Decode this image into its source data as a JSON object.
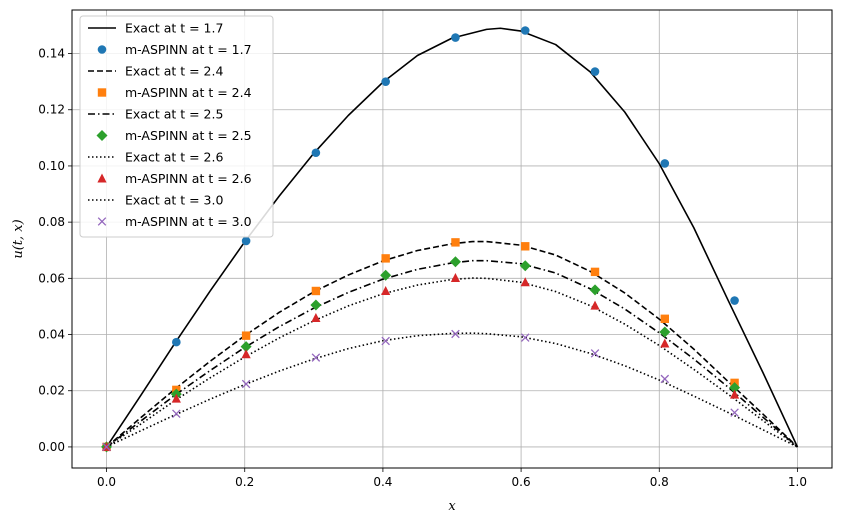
{
  "chart_data": {
    "type": "line",
    "xlabel": "x",
    "ylabel": "u(t, x)",
    "xlim": [
      -0.05,
      1.05
    ],
    "ylim": [
      -0.0075,
      0.1555
    ],
    "xticks": [
      0.0,
      0.2,
      0.4,
      0.6,
      0.8,
      1.0
    ],
    "xtick_labels": [
      "0.0",
      "0.2",
      "0.4",
      "0.6",
      "0.8",
      "1.0"
    ],
    "yticks": [
      0.0,
      0.02,
      0.04,
      0.06,
      0.08,
      0.1,
      0.12,
      0.14
    ],
    "ytick_labels": [
      "0.00",
      "0.02",
      "0.04",
      "0.06",
      "0.08",
      "0.10",
      "0.12",
      "0.14"
    ],
    "grid": true,
    "legend_position": "top-left",
    "series": [
      {
        "name": "Exact at t = 1.7",
        "kind": "line",
        "linestyle": "solid",
        "color": "#000000",
        "x": [
          0.0,
          0.05,
          0.1,
          0.15,
          0.2,
          0.25,
          0.3,
          0.35,
          0.4,
          0.45,
          0.5,
          0.55,
          0.57,
          0.6,
          0.65,
          0.7,
          0.75,
          0.8,
          0.85,
          0.9,
          0.95,
          1.0
        ],
        "y": [
          0.0,
          0.0185,
          0.0373,
          0.0555,
          0.073,
          0.0893,
          0.1045,
          0.118,
          0.1298,
          0.1393,
          0.1455,
          0.1486,
          0.149,
          0.148,
          0.1432,
          0.1335,
          0.1192,
          0.1008,
          0.078,
          0.052,
          0.0265,
          0.0
        ]
      },
      {
        "name": "m-ASPINN at t = 1.7",
        "kind": "marker",
        "marker": "circle",
        "color": "#1f77b4",
        "x": [
          0.0,
          0.101,
          0.202,
          0.303,
          0.404,
          0.505,
          0.606,
          0.707,
          0.808,
          0.909
        ],
        "y": [
          0.0,
          0.0373,
          0.0733,
          0.1047,
          0.13,
          0.1457,
          0.1482,
          0.1336,
          0.1009,
          0.0521
        ]
      },
      {
        "name": "Exact at t = 2.4",
        "kind": "line",
        "linestyle": "dashed",
        "color": "#000000",
        "x": [
          0.0,
          0.05,
          0.1,
          0.15,
          0.2,
          0.25,
          0.3,
          0.35,
          0.4,
          0.45,
          0.5,
          0.53,
          0.55,
          0.6,
          0.65,
          0.7,
          0.75,
          0.8,
          0.85,
          0.9,
          0.95,
          1.0
        ],
        "y": [
          0.0,
          0.0105,
          0.0208,
          0.0305,
          0.0396,
          0.0479,
          0.0552,
          0.0612,
          0.0662,
          0.0699,
          0.0723,
          0.0731,
          0.0731,
          0.0718,
          0.0683,
          0.0625,
          0.0548,
          0.0455,
          0.0348,
          0.0232,
          0.0117,
          0.0
        ]
      },
      {
        "name": "m-ASPINN at t = 2.4",
        "kind": "marker",
        "marker": "square",
        "color": "#ff7f0e",
        "x": [
          0.0,
          0.101,
          0.202,
          0.303,
          0.404,
          0.505,
          0.606,
          0.707,
          0.808,
          0.909
        ],
        "y": [
          0.0,
          0.0203,
          0.0396,
          0.0555,
          0.0671,
          0.0728,
          0.0714,
          0.0623,
          0.0456,
          0.0228
        ]
      },
      {
        "name": "Exact at t = 2.5",
        "kind": "line",
        "linestyle": "dashdot",
        "color": "#000000",
        "x": [
          0.0,
          0.05,
          0.1,
          0.15,
          0.2,
          0.25,
          0.3,
          0.35,
          0.4,
          0.45,
          0.5,
          0.53,
          0.55,
          0.6,
          0.65,
          0.7,
          0.75,
          0.8,
          0.85,
          0.9,
          0.95,
          1.0
        ],
        "y": [
          0.0,
          0.0093,
          0.0186,
          0.0272,
          0.0354,
          0.0428,
          0.0494,
          0.055,
          0.0597,
          0.0632,
          0.0655,
          0.0663,
          0.0663,
          0.0652,
          0.0619,
          0.0563,
          0.0491,
          0.0406,
          0.0313,
          0.0212,
          0.0106,
          0.0
        ]
      },
      {
        "name": "m-ASPINN at t = 2.5",
        "kind": "marker",
        "marker": "diamond",
        "color": "#2ca02c",
        "x": [
          0.0,
          0.101,
          0.202,
          0.303,
          0.404,
          0.505,
          0.606,
          0.707,
          0.808,
          0.909
        ],
        "y": [
          0.0,
          0.0188,
          0.0357,
          0.0505,
          0.0611,
          0.0659,
          0.0645,
          0.0559,
          0.0409,
          0.0211
        ]
      },
      {
        "name": "Exact at t = 2.6",
        "kind": "line",
        "linestyle": "dotted",
        "color": "#000000",
        "x": [
          0.0,
          0.05,
          0.1,
          0.15,
          0.2,
          0.25,
          0.3,
          0.35,
          0.4,
          0.45,
          0.5,
          0.53,
          0.55,
          0.6,
          0.65,
          0.7,
          0.75,
          0.8,
          0.85,
          0.9,
          0.95,
          1.0
        ],
        "y": [
          0.0,
          0.0082,
          0.0167,
          0.0246,
          0.032,
          0.0388,
          0.0449,
          0.0502,
          0.0545,
          0.0576,
          0.0596,
          0.0601,
          0.06,
          0.0586,
          0.0553,
          0.0503,
          0.0437,
          0.0361,
          0.0276,
          0.0187,
          0.0094,
          0.0
        ]
      },
      {
        "name": "m-ASPINN at t = 2.6",
        "kind": "marker",
        "marker": "triangle",
        "color": "#d62728",
        "x": [
          0.0,
          0.101,
          0.202,
          0.303,
          0.404,
          0.505,
          0.606,
          0.707,
          0.808,
          0.909
        ],
        "y": [
          0.0,
          0.0172,
          0.033,
          0.0459,
          0.0555,
          0.0601,
          0.0586,
          0.0503,
          0.0368,
          0.0186
        ]
      },
      {
        "name": "Exact at t = 3.0",
        "kind": "line",
        "linestyle": "dotted",
        "color": "#000000",
        "x": [
          0.0,
          0.05,
          0.1,
          0.15,
          0.2,
          0.25,
          0.3,
          0.35,
          0.4,
          0.45,
          0.5,
          0.53,
          0.55,
          0.6,
          0.65,
          0.7,
          0.75,
          0.8,
          0.85,
          0.9,
          0.95,
          1.0
        ],
        "y": [
          0.0,
          0.0058,
          0.0115,
          0.017,
          0.0222,
          0.027,
          0.0313,
          0.035,
          0.0378,
          0.0396,
          0.0404,
          0.0405,
          0.0403,
          0.0392,
          0.0368,
          0.0333,
          0.0289,
          0.0238,
          0.0181,
          0.0122,
          0.0061,
          0.0
        ]
      },
      {
        "name": "m-ASPINN at t = 3.0",
        "kind": "marker",
        "marker": "x",
        "color": "#9467bd",
        "x": [
          0.0,
          0.101,
          0.202,
          0.303,
          0.404,
          0.505,
          0.606,
          0.707,
          0.808,
          0.909
        ],
        "y": [
          0.0,
          0.0118,
          0.0224,
          0.0318,
          0.0377,
          0.0402,
          0.0389,
          0.0333,
          0.0242,
          0.0122
        ]
      }
    ]
  }
}
